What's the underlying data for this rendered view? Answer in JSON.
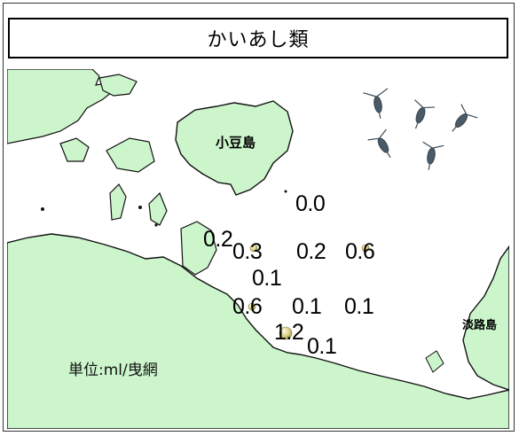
{
  "title": "かいあし類",
  "unit_label": "単位:ml/曳網",
  "islands": {
    "shodoshima": "小豆島",
    "awajishima": "淡路島"
  },
  "stations": [
    {
      "value": "0.0",
      "marker": false
    },
    {
      "value": "0.2",
      "marker": false
    },
    {
      "value": "0.3",
      "marker": true
    },
    {
      "value": "0.2",
      "marker": false
    },
    {
      "value": "0.6",
      "marker": true
    },
    {
      "value": "0.1",
      "marker": false
    },
    {
      "value": "0.6",
      "marker": true
    },
    {
      "value": "0.1",
      "marker": false
    },
    {
      "value": "0.1",
      "marker": false
    },
    {
      "value": "1.2",
      "marker": true
    },
    {
      "value": "0.1",
      "marker": false
    }
  ],
  "colors": {
    "land": "#ccf5cc",
    "sea": "#ffffff",
    "coast": "#111111",
    "marker": "#d8cf8a"
  },
  "icons": {
    "copepod": "copepod-illustration"
  }
}
